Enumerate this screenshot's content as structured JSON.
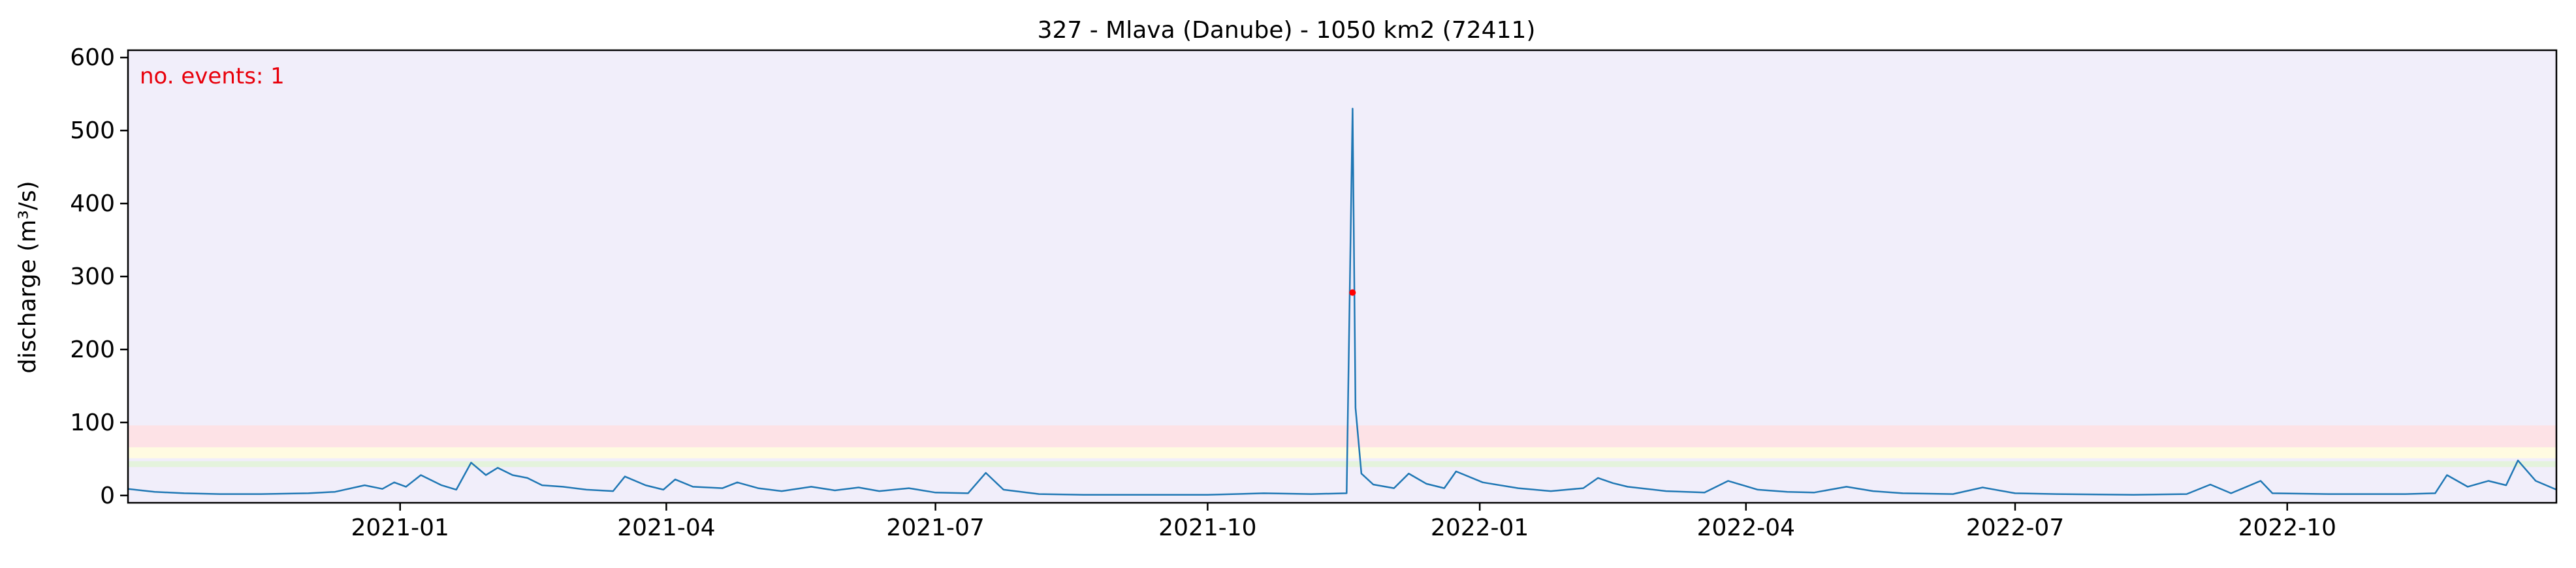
{
  "chart_data": {
    "type": "line",
    "title": "327 - Mlava (Danube) - 1050 km2 (72411)",
    "xlabel": "",
    "ylabel": "discharge (m³/s)",
    "x_range": [
      "2020-10-01",
      "2022-12-31"
    ],
    "ylim": [
      -10,
      610
    ],
    "y_ticks": [
      0,
      100,
      200,
      300,
      400,
      500,
      600
    ],
    "x_ticks": [
      {
        "date": "2021-01-01",
        "label": "2021-01"
      },
      {
        "date": "2021-04-01",
        "label": "2021-04"
      },
      {
        "date": "2021-07-01",
        "label": "2021-07"
      },
      {
        "date": "2021-10-01",
        "label": "2021-10"
      },
      {
        "date": "2022-01-01",
        "label": "2022-01"
      },
      {
        "date": "2022-04-01",
        "label": "2022-04"
      },
      {
        "date": "2022-07-01",
        "label": "2022-07"
      },
      {
        "date": "2022-10-01",
        "label": "2022-10"
      }
    ],
    "grid": false,
    "annotation": {
      "text": "no. events: 1",
      "color": "#e8000b"
    },
    "background_color": "#f1eefa",
    "threshold_bands": [
      {
        "from": 66,
        "to": 96,
        "color": "#fde2e6"
      },
      {
        "from": 51,
        "to": 66,
        "color": "#fffbe1"
      },
      {
        "from": 39,
        "to": 47,
        "color": "#e4f3dc"
      }
    ],
    "series": [
      {
        "color": "#1f77b4",
        "points": [
          [
            "2020-10-01",
            9
          ],
          [
            "2020-10-10",
            5
          ],
          [
            "2020-10-20",
            3
          ],
          [
            "2020-11-01",
            2
          ],
          [
            "2020-11-15",
            2
          ],
          [
            "2020-12-01",
            3
          ],
          [
            "2020-12-10",
            5
          ],
          [
            "2020-12-20",
            14
          ],
          [
            "2020-12-26",
            9
          ],
          [
            "2020-12-30",
            18
          ],
          [
            "2021-01-03",
            12
          ],
          [
            "2021-01-08",
            28
          ],
          [
            "2021-01-15",
            14
          ],
          [
            "2021-01-20",
            8
          ],
          [
            "2021-01-25",
            45
          ],
          [
            "2021-01-30",
            28
          ],
          [
            "2021-02-03",
            38
          ],
          [
            "2021-02-08",
            28
          ],
          [
            "2021-02-13",
            24
          ],
          [
            "2021-02-18",
            14
          ],
          [
            "2021-02-25",
            12
          ],
          [
            "2021-03-05",
            8
          ],
          [
            "2021-03-14",
            6
          ],
          [
            "2021-03-18",
            26
          ],
          [
            "2021-03-25",
            14
          ],
          [
            "2021-03-31",
            8
          ],
          [
            "2021-04-04",
            22
          ],
          [
            "2021-04-10",
            12
          ],
          [
            "2021-04-20",
            10
          ],
          [
            "2021-04-25",
            18
          ],
          [
            "2021-05-02",
            10
          ],
          [
            "2021-05-10",
            6
          ],
          [
            "2021-05-20",
            12
          ],
          [
            "2021-05-28",
            7
          ],
          [
            "2021-06-05",
            11
          ],
          [
            "2021-06-12",
            6
          ],
          [
            "2021-06-22",
            10
          ],
          [
            "2021-07-01",
            4
          ],
          [
            "2021-07-12",
            3
          ],
          [
            "2021-07-18",
            31
          ],
          [
            "2021-07-24",
            8
          ],
          [
            "2021-08-05",
            2
          ],
          [
            "2021-08-20",
            1
          ],
          [
            "2021-09-10",
            1
          ],
          [
            "2021-10-01",
            1
          ],
          [
            "2021-10-20",
            3
          ],
          [
            "2021-11-05",
            2
          ],
          [
            "2021-11-17",
            3
          ],
          [
            "2021-11-19",
            530
          ],
          [
            "2021-11-20",
            120
          ],
          [
            "2021-11-22",
            30
          ],
          [
            "2021-11-26",
            15
          ],
          [
            "2021-12-03",
            10
          ],
          [
            "2021-12-08",
            30
          ],
          [
            "2021-12-14",
            16
          ],
          [
            "2021-12-20",
            10
          ],
          [
            "2021-12-24",
            33
          ],
          [
            "2022-01-02",
            18
          ],
          [
            "2022-01-14",
            10
          ],
          [
            "2022-01-25",
            6
          ],
          [
            "2022-02-05",
            10
          ],
          [
            "2022-02-10",
            24
          ],
          [
            "2022-02-15",
            17
          ],
          [
            "2022-02-20",
            12
          ],
          [
            "2022-03-05",
            6
          ],
          [
            "2022-03-18",
            4
          ],
          [
            "2022-03-26",
            20
          ],
          [
            "2022-04-05",
            8
          ],
          [
            "2022-04-15",
            5
          ],
          [
            "2022-04-24",
            4
          ],
          [
            "2022-05-05",
            12
          ],
          [
            "2022-05-14",
            6
          ],
          [
            "2022-05-24",
            3
          ],
          [
            "2022-06-10",
            2
          ],
          [
            "2022-06-20",
            11
          ],
          [
            "2022-07-01",
            3
          ],
          [
            "2022-07-15",
            2
          ],
          [
            "2022-08-10",
            1
          ],
          [
            "2022-08-28",
            2
          ],
          [
            "2022-09-05",
            15
          ],
          [
            "2022-09-12",
            3
          ],
          [
            "2022-09-22",
            20
          ],
          [
            "2022-09-26",
            3
          ],
          [
            "2022-10-15",
            2
          ],
          [
            "2022-11-10",
            2
          ],
          [
            "2022-11-20",
            3
          ],
          [
            "2022-11-24",
            28
          ],
          [
            "2022-12-01",
            12
          ],
          [
            "2022-12-08",
            20
          ],
          [
            "2022-12-14",
            14
          ],
          [
            "2022-12-18",
            48
          ],
          [
            "2022-12-24",
            20
          ],
          [
            "2022-12-31",
            8
          ]
        ]
      }
    ],
    "event_markers": [
      {
        "date": "2021-11-19",
        "value": 278,
        "color": "#ff0000"
      }
    ]
  }
}
